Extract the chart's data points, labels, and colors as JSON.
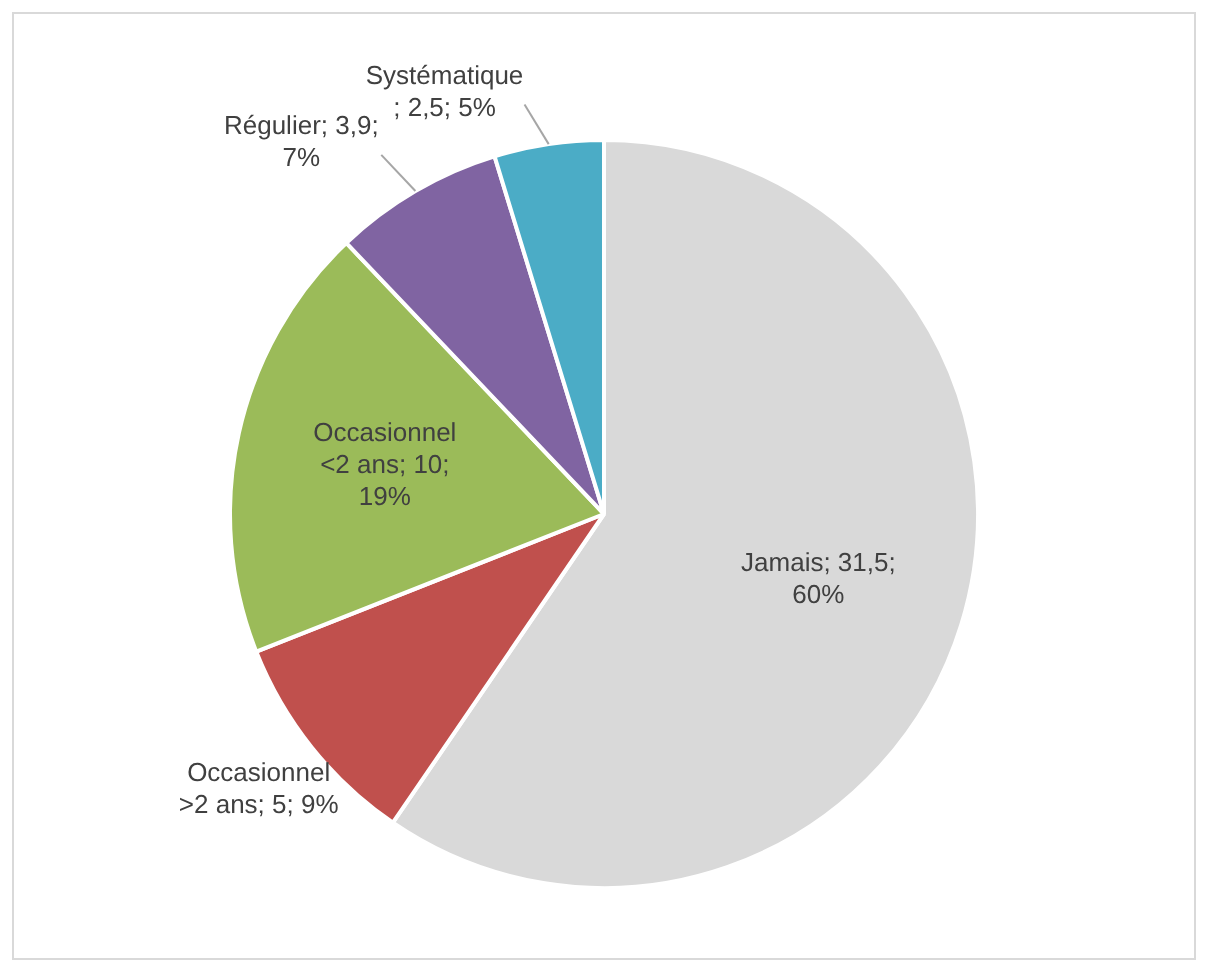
{
  "chart_data": {
    "type": "pie",
    "categories": [
      "Jamais",
      "Occasionnel >2 ans",
      "Occasionnel <2 ans",
      "Régulier",
      "Systématique"
    ],
    "values": [
      31.5,
      5,
      10,
      3.9,
      2.5
    ],
    "colors": [
      "#d9d9d9",
      "#c0504d",
      "#9bbb59",
      "#8064a2",
      "#4bacc6"
    ],
    "value_labels": [
      "; 31,5; 60%",
      "; 5; 9%",
      "; 10; 19%",
      "; 3,9; 7%",
      "; 2,5; 5%"
    ],
    "legend": false
  }
}
